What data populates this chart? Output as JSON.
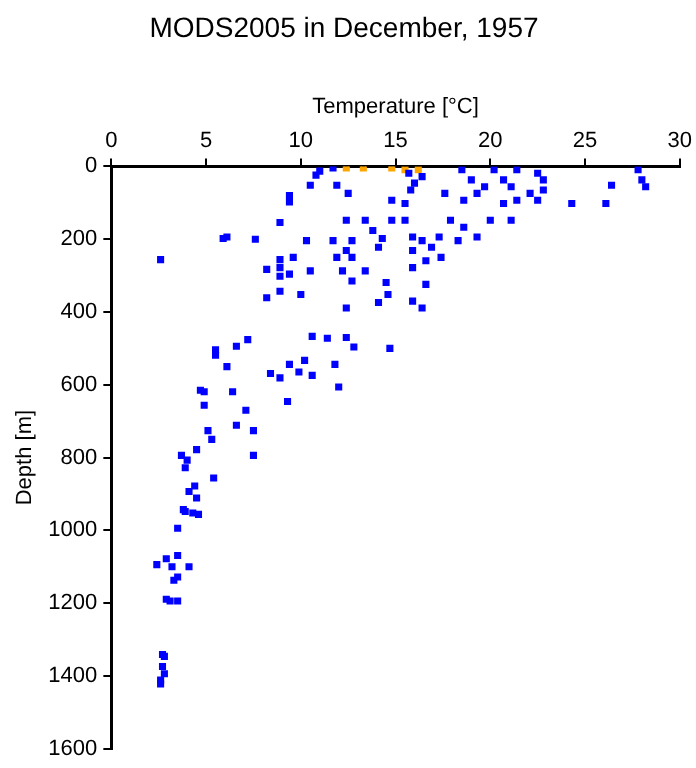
{
  "chart_data": {
    "type": "scatter",
    "title": "MODS2005 in December, 1957",
    "xlabel": "Temperature [°C]",
    "ylabel": "Depth [m]",
    "xlim": [
      0,
      30
    ],
    "xticks": [
      0,
      5,
      10,
      15,
      20,
      25,
      30
    ],
    "ylim": [
      1600,
      0
    ],
    "yticks": [
      0,
      200,
      400,
      600,
      800,
      1000,
      1200,
      1400,
      1600
    ],
    "grid": false,
    "legend": false,
    "marker": "square",
    "series": [
      {
        "color": "#0000ff",
        "x": [
          10.8,
          11.0,
          11.7,
          11.9,
          12.5,
          10.5,
          9.4,
          9.4,
          8.9,
          5.9,
          6.1,
          7.6,
          2.6,
          8.9,
          9.6,
          8.9,
          8.2,
          8.9,
          9.4,
          10.5,
          10.3,
          11.7,
          12.4,
          12.7,
          11.9,
          12.7,
          12.2,
          13.4,
          12.4,
          13.4,
          13.8,
          14.8,
          14.3,
          14.8,
          14.1,
          14.5,
          14.6,
          14.1,
          15.5,
          15.5,
          15.9,
          15.9,
          15.9,
          16.4,
          16.6,
          16.9,
          17.3,
          17.4,
          16.6,
          15.9,
          16.4,
          17.6,
          17.9,
          18.6,
          19.3,
          18.3,
          20.0,
          21.1,
          20.7,
          22.5,
          24.3,
          26.1,
          26.4,
          27.8,
          28.0,
          28.2,
          15.7,
          16.0,
          16.4,
          15.8,
          18.5,
          19.0,
          19.3,
          18.6,
          19.7,
          20.2,
          21.4,
          22.5,
          22.8,
          21.1,
          22.1,
          21.4,
          22.8,
          20.7,
          12.7,
          12.4,
          8.9,
          10.0,
          8.2,
          5.5,
          5.5,
          6.6,
          7.2,
          6.1,
          8.4,
          8.9,
          9.4,
          9.9,
          10.2,
          10.6,
          10.6,
          11.4,
          11.8,
          12.0,
          12.4,
          12.8,
          14.7,
          9.3,
          4.7,
          4.9,
          4.9,
          6.4,
          6.6,
          7.1,
          7.5,
          7.5,
          5.1,
          5.3,
          4.5,
          3.7,
          4.0,
          3.9,
          5.4,
          4.4,
          4.1,
          4.5,
          3.8,
          3.9,
          4.3,
          4.6,
          3.5,
          3.5,
          2.9,
          2.4,
          3.2,
          4.1,
          3.3,
          3.5,
          2.9,
          3.1,
          3.5,
          2.7,
          2.8,
          2.7,
          2.8,
          2.6,
          2.6
        ],
        "values": [
          24,
          13,
          4,
          52,
          74,
          52,
          80,
          98,
          154,
          198,
          194,
          200,
          256,
          256,
          250,
          278,
          283,
          302,
          296,
          287,
          204,
          204,
          231,
          204,
          250,
          250,
          287,
          287,
          148,
          148,
          176,
          148,
          198,
          93,
          222,
          319,
          352,
          374,
          102,
          148,
          194,
          231,
          278,
          204,
          259,
          222,
          194,
          250,
          324,
          370,
          389,
          74,
          148,
          167,
          194,
          204,
          148,
          148,
          102,
          93,
          102,
          102,
          52,
          9,
          37,
          56,
          19,
          46,
          28,
          65,
          9,
          37,
          74,
          93,
          56,
          9,
          9,
          19,
          37,
          56,
          74,
          93,
          65,
          37,
          315,
          389,
          343,
          352,
          361,
          504,
          519,
          494,
          476,
          550,
          569,
          581,
          544,
          565,
          533,
          574,
          467,
          472,
          544,
          606,
          470,
          496,
          500,
          646,
          615,
          619,
          656,
          619,
          711,
          670,
          726,
          794,
          726,
          750,
          778,
          794,
          807,
          828,
          856,
          878,
          893,
          911,
          943,
          948,
          952,
          956,
          994,
          1069,
          1078,
          1094,
          1100,
          1100,
          1137,
          1128,
          1189,
          1194,
          1194,
          1341,
          1346,
          1374,
          1394,
          1411,
          1422
        ]
      },
      {
        "color": "#ffa500",
        "x": [
          12.4,
          13.3,
          14.8,
          15.5,
          16.2
        ],
        "values": [
          4,
          4,
          4,
          9,
          9
        ]
      }
    ]
  }
}
